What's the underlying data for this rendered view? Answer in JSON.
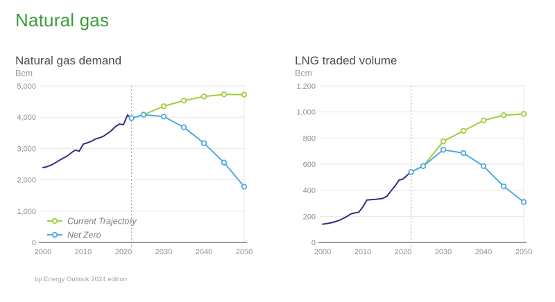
{
  "page": {
    "title": "Natural gas",
    "source": "bp Energy Outlook 2024 edition"
  },
  "colors": {
    "title_green": "#3a9c3c",
    "heading_gray": "#4d4d4d",
    "unit_gray": "#9c9c9c",
    "tick_gray": "#909090",
    "grid": "#e7e7e7",
    "axis_line": "#7d7d7d",
    "dashed_line": "#999999",
    "historical_navy": "#2d2e87",
    "current_trajectory_green": "#a2cd3a",
    "net_zero_blue": "#4fa9e1",
    "legend_text": "#7e7e7e"
  },
  "legend": {
    "current_trajectory": "Current Trajectory",
    "net_zero": "Net Zero"
  },
  "chart_data": [
    {
      "type": "line",
      "title": "Natural gas demand",
      "ylabel": "Bcm",
      "ylim": [
        0,
        5000
      ],
      "ytick_values": [
        0,
        1000,
        2000,
        3000,
        4000,
        5000
      ],
      "ytick_labels": [
        "0",
        "1,000",
        "2,000",
        "3,000",
        "4,000",
        "5,000"
      ],
      "xlim": [
        2000,
        2050
      ],
      "xtick_values": [
        2000,
        2010,
        2020,
        2030,
        2040,
        2050
      ],
      "xtick_labels": [
        "2000",
        "2010",
        "2020",
        "2030",
        "2040",
        "2050"
      ],
      "dashed_x": 2022,
      "grid": true,
      "legend": true,
      "historical": {
        "name": "Historical",
        "x": [
          2000,
          2001,
          2002,
          2003,
          2004,
          2005,
          2006,
          2007,
          2008,
          2009,
          2010,
          2011,
          2012,
          2013,
          2014,
          2015,
          2016,
          2017,
          2018,
          2019,
          2020,
          2021,
          2022
        ],
        "y": [
          2390,
          2420,
          2470,
          2540,
          2620,
          2690,
          2760,
          2860,
          2950,
          2915,
          3140,
          3180,
          3230,
          3300,
          3340,
          3390,
          3480,
          3570,
          3700,
          3780,
          3760,
          4070,
          3970
        ]
      },
      "series": [
        {
          "name": "Current Trajectory",
          "color_key": "current_trajectory_green",
          "x": [
            2022,
            2025,
            2030,
            2035,
            2040,
            2045,
            2050
          ],
          "y": [
            3970,
            4080,
            4350,
            4530,
            4660,
            4730,
            4720
          ]
        },
        {
          "name": "Net Zero",
          "color_key": "net_zero_blue",
          "x": [
            2022,
            2025,
            2030,
            2035,
            2040,
            2045,
            2050
          ],
          "y": [
            3970,
            4080,
            4020,
            3680,
            3170,
            2550,
            1780
          ]
        }
      ]
    },
    {
      "type": "line",
      "title": "LNG traded volume",
      "ylabel": "Bcm",
      "ylim": [
        0,
        1200
      ],
      "ytick_values": [
        0,
        200,
        400,
        600,
        800,
        1000,
        1200
      ],
      "ytick_labels": [
        "0",
        "200",
        "400",
        "600",
        "800",
        "1,000",
        "1,200"
      ],
      "xlim": [
        2000,
        2050
      ],
      "xtick_values": [
        2000,
        2010,
        2020,
        2030,
        2040,
        2050
      ],
      "xtick_labels": [
        "2000",
        "2010",
        "2020",
        "2030",
        "2040",
        "2050"
      ],
      "dashed_x": 2022,
      "grid": true,
      "legend": false,
      "historical": {
        "name": "Historical",
        "x": [
          2000,
          2001,
          2002,
          2003,
          2004,
          2005,
          2006,
          2007,
          2008,
          2009,
          2010,
          2011,
          2012,
          2013,
          2014,
          2015,
          2016,
          2017,
          2018,
          2019,
          2020,
          2021,
          2022
        ],
        "y": [
          140,
          144,
          150,
          158,
          168,
          182,
          198,
          218,
          226,
          232,
          272,
          325,
          328,
          330,
          333,
          338,
          355,
          395,
          432,
          478,
          486,
          515,
          540
        ]
      },
      "series": [
        {
          "name": "Current Trajectory",
          "color_key": "current_trajectory_green",
          "x": [
            2022,
            2025,
            2030,
            2035,
            2040,
            2045,
            2050
          ],
          "y": [
            540,
            585,
            775,
            855,
            935,
            975,
            985
          ]
        },
        {
          "name": "Net Zero",
          "color_key": "net_zero_blue",
          "x": [
            2022,
            2025,
            2030,
            2035,
            2040,
            2045,
            2050
          ],
          "y": [
            540,
            585,
            710,
            685,
            585,
            430,
            310
          ]
        }
      ]
    }
  ]
}
